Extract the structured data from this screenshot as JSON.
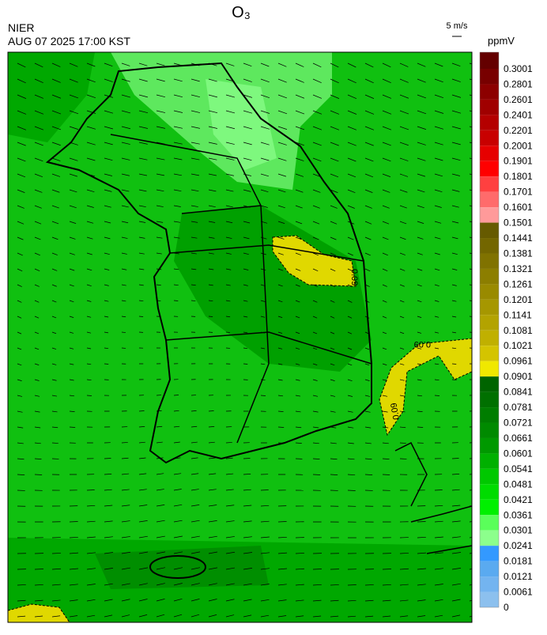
{
  "header": {
    "title": "O₃",
    "agency": "NIER",
    "timestamp": "AUG 07 2025 17:00 KST"
  },
  "wind_scale": {
    "label": "5 m/s"
  },
  "colorbar": {
    "unit": "ppmV",
    "labels": [
      0.3001,
      0.2801,
      0.2601,
      0.2401,
      0.2201,
      0.2001,
      0.1901,
      0.1801,
      0.1701,
      0.1601,
      0.1501,
      0.1441,
      0.1381,
      0.1321,
      0.1261,
      0.1201,
      0.1141,
      0.1081,
      0.1021,
      0.0961,
      0.0901,
      0.0841,
      0.0781,
      0.0721,
      0.0661,
      0.0601,
      0.0541,
      0.0481,
      0.0421,
      0.0361,
      0.0301,
      0.0241,
      0.0181,
      0.0121,
      0.0061,
      0
    ],
    "colors": [
      "#640000",
      "#780000",
      "#8c0000",
      "#a00000",
      "#b40000",
      "#c80000",
      "#e60000",
      "#ff0000",
      "#ff4040",
      "#ff6b6b",
      "#ff9a9a",
      "#665a00",
      "#736600",
      "#807200",
      "#8c7e00",
      "#998a00",
      "#a69700",
      "#b3a300",
      "#c0b000",
      "#d4c400",
      "#f0e800",
      "#006400",
      "#007000",
      "#007d00",
      "#008a00",
      "#009900",
      "#00b000",
      "#00c800",
      "#00dc00",
      "#00f000",
      "#5aff5a",
      "#8cff8c",
      "#3399ff",
      "#5aaaf0",
      "#73b4f0",
      "#8cc0ee",
      "#a6d0ee"
    ]
  },
  "contour_labels": [
    "0.09",
    "0.09",
    "0.09"
  ]
}
